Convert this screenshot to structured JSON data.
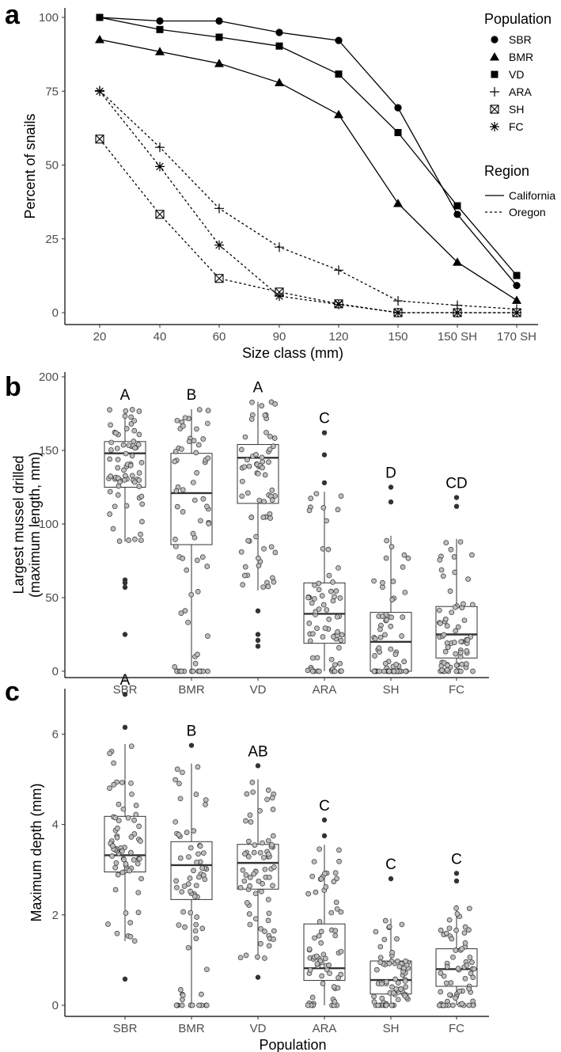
{
  "panels": {
    "a": "a",
    "b": "b",
    "c": "c"
  },
  "legend": {
    "population_title": "Population",
    "region_title": "Region",
    "populations": [
      {
        "label": "SBR",
        "shape": "circle"
      },
      {
        "label": "BMR",
        "shape": "triangle"
      },
      {
        "label": "VD",
        "shape": "square"
      },
      {
        "label": "ARA",
        "shape": "plus"
      },
      {
        "label": "SH",
        "shape": "boxx"
      },
      {
        "label": "FC",
        "shape": "star"
      }
    ],
    "regions": [
      {
        "label": "California",
        "dash": "solid"
      },
      {
        "label": "Oregon",
        "dash": "dotted"
      }
    ]
  },
  "chart_data": [
    {
      "type": "line",
      "panel": "a",
      "xlabel": "Size class (mm)",
      "ylabel": "Percent of snails",
      "categories": [
        "20",
        "40",
        "60",
        "90",
        "120",
        "150",
        "150 SH",
        "170 SH"
      ],
      "ylim": [
        0,
        100
      ],
      "yticks": [
        0,
        25,
        50,
        75,
        100
      ],
      "series": [
        {
          "name": "SBR",
          "region": "California",
          "values": [
            100,
            98.8,
            98.8,
            94.9,
            92.2,
            69.4,
            33.3,
            9.2
          ]
        },
        {
          "name": "BMR",
          "region": "California",
          "values": [
            92.5,
            88.4,
            84.4,
            77.9,
            67.1,
            37.0,
            17.1,
            4.2
          ]
        },
        {
          "name": "VD",
          "region": "California",
          "values": [
            100,
            95.9,
            93.3,
            90.3,
            80.8,
            61.0,
            36.2,
            12.6
          ]
        },
        {
          "name": "ARA",
          "region": "Oregon",
          "values": [
            75.2,
            56.0,
            35.3,
            22.2,
            14.4,
            4.0,
            2.5,
            1.2
          ]
        },
        {
          "name": "SH",
          "region": "Oregon",
          "values": [
            58.8,
            33.3,
            11.6,
            7.0,
            3.0,
            0,
            0,
            0
          ]
        },
        {
          "name": "FC",
          "region": "Oregon",
          "values": [
            75.0,
            49.5,
            22.9,
            5.6,
            2.8,
            0,
            0,
            0
          ]
        }
      ]
    },
    {
      "type": "box",
      "panel": "b",
      "xlabel": "",
      "ylabel": "Largest mussel drilled (maximum length, mm)",
      "categories": [
        "SBR",
        "BMR",
        "VD",
        "ARA",
        "SH",
        "FC"
      ],
      "ylim": [
        0,
        200
      ],
      "yticks": [
        0,
        50,
        100,
        150,
        200
      ],
      "boxes": [
        {
          "name": "SBR",
          "q1": 125,
          "median": 148,
          "q3": 156,
          "whisker_low": 88,
          "whisker_high": 178,
          "outliers": [
            25,
            57,
            60,
            62
          ]
        },
        {
          "name": "BMR",
          "q1": 86,
          "median": 121,
          "q3": 148,
          "whisker_low": 0,
          "whisker_high": 178,
          "outliers": []
        },
        {
          "name": "VD",
          "q1": 114,
          "median": 145,
          "q3": 154,
          "whisker_low": 55,
          "whisker_high": 183,
          "outliers": [
            17,
            21,
            25,
            41
          ]
        },
        {
          "name": "ARA",
          "q1": 19,
          "median": 39,
          "q3": 60,
          "whisker_low": 0,
          "whisker_high": 122,
          "outliers": [
            128,
            147,
            162
          ]
        },
        {
          "name": "SH",
          "q1": 0,
          "median": 20,
          "q3": 40,
          "whisker_low": 0,
          "whisker_high": 92,
          "outliers": [
            115,
            125
          ]
        },
        {
          "name": "FC",
          "q1": 9,
          "median": 25,
          "q3": 44,
          "whisker_low": 0,
          "whisker_high": 90,
          "outliers": [
            112,
            118
          ]
        }
      ],
      "significance_letters": [
        "A",
        "B",
        "A",
        "C",
        "D",
        "CD"
      ]
    },
    {
      "type": "box",
      "panel": "c",
      "xlabel": "Population",
      "ylabel": "Maximum depth (mm)",
      "categories": [
        "SBR",
        "BMR",
        "VD",
        "ARA",
        "SH",
        "FC"
      ],
      "ylim": [
        0,
        6.9
      ],
      "yticks": [
        0,
        2,
        4,
        6
      ],
      "boxes": [
        {
          "name": "SBR",
          "q1": 2.95,
          "median": 3.32,
          "q3": 4.18,
          "whisker_low": 1.42,
          "whisker_high": 5.78,
          "outliers": [
            0.58,
            6.15,
            6.88
          ]
        },
        {
          "name": "BMR",
          "q1": 2.34,
          "median": 3.1,
          "q3": 3.62,
          "whisker_low": 0,
          "whisker_high": 5.35,
          "outliers": [
            5.75
          ]
        },
        {
          "name": "VD",
          "q1": 2.57,
          "median": 3.15,
          "q3": 3.56,
          "whisker_low": 1.0,
          "whisker_high": 5.0,
          "outliers": [
            0.62,
            5.3
          ]
        },
        {
          "name": "ARA",
          "q1": 0.55,
          "median": 0.82,
          "q3": 1.8,
          "whisker_low": 0,
          "whisker_high": 3.55,
          "outliers": [
            3.75,
            4.1
          ]
        },
        {
          "name": "SH",
          "q1": 0.25,
          "median": 0.56,
          "q3": 0.98,
          "whisker_low": 0,
          "whisker_high": 1.92,
          "outliers": [
            2.8
          ]
        },
        {
          "name": "FC",
          "q1": 0.42,
          "median": 0.8,
          "q3": 1.25,
          "whisker_low": 0,
          "whisker_high": 2.22,
          "outliers": [
            2.75,
            2.92
          ]
        }
      ],
      "significance_letters": [
        "A",
        "B",
        "AB",
        "C",
        "C",
        "C"
      ]
    }
  ]
}
